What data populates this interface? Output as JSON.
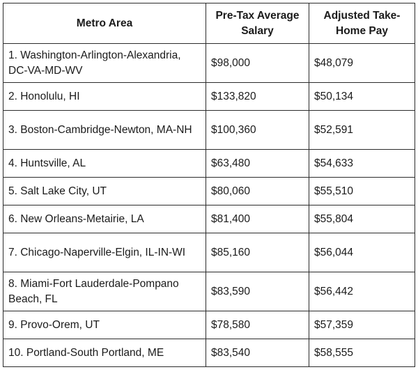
{
  "table": {
    "headers": {
      "metro": "Metro Area",
      "pretax": "Pre-Tax Average Salary",
      "takehome": "Adjusted Take-Home Pay"
    },
    "rows": [
      {
        "metro": "1. Washington-Arlington-Alexandria, DC-VA-MD-WV",
        "pretax": "$98,000",
        "takehome": "$48,079"
      },
      {
        "metro": "2. Honolulu, HI",
        "pretax": "$133,820",
        "takehome": "$50,134"
      },
      {
        "metro": "3. Boston-Cambridge-Newton, MA-NH",
        "pretax": "$100,360",
        "takehome": "$52,591"
      },
      {
        "metro": "4. Huntsville, AL",
        "pretax": "$63,480",
        "takehome": "$54,633"
      },
      {
        "metro": "5. Salt Lake City, UT",
        "pretax": "$80,060",
        "takehome": "$55,510"
      },
      {
        "metro": "6. New Orleans-Metairie, LA",
        "pretax": "$81,400",
        "takehome": "$55,804"
      },
      {
        "metro": "7. Chicago-Naperville-Elgin, IL-IN-WI",
        "pretax": "$85,160",
        "takehome": "$56,044"
      },
      {
        "metro": "8. Miami-Fort Lauderdale-Pompano Beach, FL",
        "pretax": "$83,590",
        "takehome": "$56,442"
      },
      {
        "metro": "9. Provo-Orem, UT",
        "pretax": "$78,580",
        "takehome": "$57,359"
      },
      {
        "metro": "10. Portland-South Portland, ME",
        "pretax": "$83,540",
        "takehome": "$58,555"
      }
    ]
  }
}
